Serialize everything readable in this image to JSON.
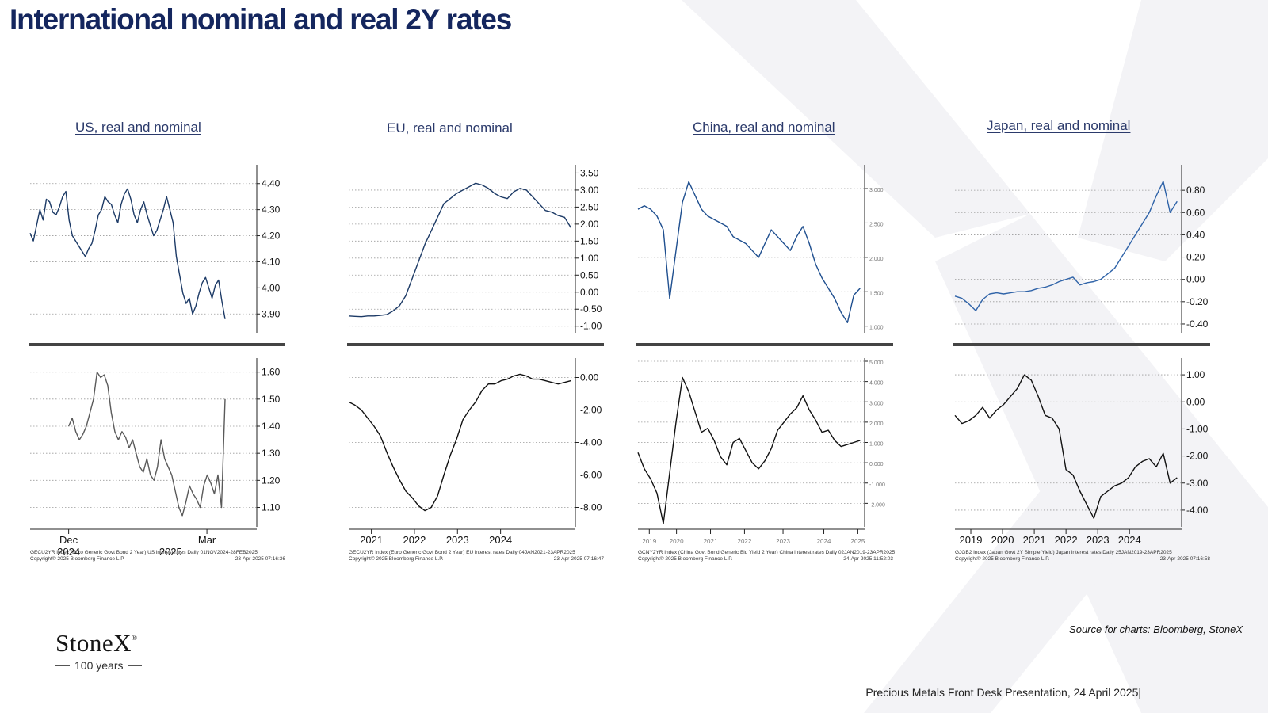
{
  "page": {
    "title": "International nominal and real 2Y rates",
    "source": "Source for charts: Bloomberg, StoneX",
    "footer": "Precious Metals Front Desk Presentation, 24 April 2025|",
    "logo": {
      "name": "StoneX",
      "mark": "®",
      "tagline": "100 years"
    }
  },
  "chart_data": [
    {
      "type": "line",
      "title": "US, real and nominal",
      "panels": [
        {
          "name": "nominal",
          "color": "#1c3a66",
          "ylim": [
            3.84,
            4.46
          ],
          "yticks": [
            3.9,
            4.0,
            4.1,
            4.2,
            4.3,
            4.4
          ],
          "decimals": 2,
          "t0": 0.0,
          "t1": 0.86,
          "values": [
            4.21,
            4.18,
            4.24,
            4.3,
            4.26,
            4.34,
            4.33,
            4.29,
            4.28,
            4.31,
            4.35,
            4.37,
            4.26,
            4.2,
            4.18,
            4.16,
            4.14,
            4.12,
            4.15,
            4.17,
            4.22,
            4.28,
            4.3,
            4.35,
            4.33,
            4.32,
            4.28,
            4.25,
            4.32,
            4.36,
            4.38,
            4.34,
            4.28,
            4.25,
            4.3,
            4.33,
            4.28,
            4.24,
            4.2,
            4.22,
            4.26,
            4.3,
            4.35,
            4.3,
            4.25,
            4.12,
            4.05,
            3.98,
            3.94,
            3.96,
            3.9,
            3.93,
            3.98,
            4.02,
            4.04,
            4.0,
            3.96,
            4.01,
            4.03,
            3.95,
            3.88
          ]
        },
        {
          "name": "real",
          "color": "#5a5a5a",
          "ylim": [
            1.04,
            1.64
          ],
          "yticks": [
            1.1,
            1.2,
            1.3,
            1.4,
            1.5,
            1.6
          ],
          "decimals": 2,
          "t0": 0.17,
          "t1": 0.86,
          "values": [
            1.4,
            1.43,
            1.38,
            1.35,
            1.37,
            1.4,
            1.45,
            1.5,
            1.6,
            1.58,
            1.59,
            1.55,
            1.45,
            1.38,
            1.35,
            1.38,
            1.36,
            1.32,
            1.35,
            1.3,
            1.25,
            1.23,
            1.28,
            1.22,
            1.2,
            1.25,
            1.35,
            1.28,
            1.25,
            1.22,
            1.16,
            1.1,
            1.07,
            1.12,
            1.18,
            1.15,
            1.13,
            1.1,
            1.18,
            1.22,
            1.19,
            1.15,
            1.22,
            1.1,
            1.5
          ]
        }
      ],
      "x_axis": {
        "ticks": [
          "Dec",
          "Mar"
        ],
        "tick_pos": [
          0.17,
          0.78
        ],
        "years": [
          "2024",
          "2025"
        ],
        "year_pos": [
          0.17,
          0.62
        ]
      },
      "caption": [
        "GECU2YR Index (Euro Generic Govt Bond 2 Year) US interest rates  Daily 01NOV2024-28FEB2025",
        "Copyright© 2025 Bloomberg Finance L.P.",
        "23-Apr-2025 07:16:36"
      ]
    },
    {
      "type": "line",
      "title": "EU, real and nominal",
      "panels": [
        {
          "name": "nominal",
          "color": "#1c3a66",
          "ylim": [
            -1.1,
            3.65
          ],
          "yticks": [
            -1.0,
            -0.5,
            0.0,
            0.5,
            1.0,
            1.5,
            2.0,
            2.5,
            3.0,
            3.5
          ],
          "decimals": 2,
          "t0": 0.0,
          "t1": 0.98,
          "values": [
            -0.7,
            -0.71,
            -0.72,
            -0.7,
            -0.7,
            -0.68,
            -0.66,
            -0.55,
            -0.4,
            -0.1,
            0.4,
            0.9,
            1.4,
            1.8,
            2.2,
            2.6,
            2.75,
            2.9,
            3.0,
            3.1,
            3.2,
            3.15,
            3.05,
            2.9,
            2.8,
            2.75,
            2.95,
            3.05,
            3.0,
            2.8,
            2.6,
            2.4,
            2.35,
            2.25,
            2.2,
            1.9
          ]
        },
        {
          "name": "real",
          "color": "#111111",
          "ylim": [
            -9.0,
            1.0
          ],
          "yticks": [
            -8.0,
            -6.0,
            -4.0,
            -2.0,
            0.0
          ],
          "decimals": 2,
          "t0": 0.0,
          "t1": 0.98,
          "values": [
            -1.5,
            -1.7,
            -2.0,
            -2.5,
            -3.0,
            -3.6,
            -4.6,
            -5.5,
            -6.3,
            -7.0,
            -7.4,
            -7.9,
            -8.2,
            -8.0,
            -7.3,
            -6.0,
            -4.8,
            -3.8,
            -2.6,
            -2.0,
            -1.5,
            -0.8,
            -0.4,
            -0.4,
            -0.2,
            -0.1,
            0.1,
            0.2,
            0.1,
            -0.1,
            -0.1,
            -0.2,
            -0.3,
            -0.4,
            -0.3,
            -0.2
          ]
        }
      ],
      "x_axis": {
        "ticks": [
          "2021",
          "2022",
          "2023",
          "2024"
        ],
        "tick_pos": [
          0.1,
          0.29,
          0.48,
          0.67
        ],
        "years": [],
        "year_pos": []
      },
      "caption": [
        "GECU2YR Index (Euro Generic Govt Bond 2 Year) EU interest rates  Daily 04JAN2021-23APR2025",
        "Copyright© 2025 Bloomberg Finance L.P.",
        "23-Apr-2025 07:16:47"
      ]
    },
    {
      "type": "line",
      "title": "China, real and nominal",
      "panels": [
        {
          "name": "nominal",
          "color": "#1f4f8f",
          "ylim": [
            0.95,
            3.3
          ],
          "yticks": [
            1.0,
            1.5,
            2.0,
            2.5,
            3.0
          ],
          "decimals": 3,
          "t0": 0.0,
          "t1": 0.98,
          "values": [
            2.7,
            2.75,
            2.7,
            2.6,
            2.4,
            1.4,
            2.1,
            2.8,
            3.1,
            2.9,
            2.7,
            2.6,
            2.55,
            2.5,
            2.45,
            2.3,
            2.25,
            2.2,
            2.1,
            2.0,
            2.2,
            2.4,
            2.3,
            2.2,
            2.1,
            2.3,
            2.45,
            2.2,
            1.9,
            1.7,
            1.55,
            1.4,
            1.2,
            1.05,
            1.45,
            1.55
          ]
        },
        {
          "name": "real",
          "color": "#111111",
          "ylim": [
            -3.0,
            5.0
          ],
          "yticks": [
            -2.0,
            -1.0,
            0.0,
            1.0,
            2.0,
            3.0,
            4.0,
            5.0
          ],
          "decimals": 3,
          "t0": 0.0,
          "t1": 0.98,
          "values": [
            0.5,
            -0.3,
            -0.8,
            -1.5,
            -3.0,
            -0.5,
            2.0,
            4.2,
            3.5,
            2.5,
            1.5,
            1.7,
            1.1,
            0.3,
            -0.1,
            1.0,
            1.2,
            0.6,
            0.0,
            -0.3,
            0.1,
            0.7,
            1.6,
            2.0,
            2.4,
            2.7,
            3.3,
            2.6,
            2.1,
            1.5,
            1.6,
            1.1,
            0.8,
            0.9,
            1.0,
            1.1
          ]
        }
      ],
      "x_axis": {
        "ticks": [
          "2019",
          "2020",
          "2021",
          "2022",
          "2023",
          "2024",
          "2025"
        ],
        "tick_pos": [
          0.05,
          0.17,
          0.32,
          0.47,
          0.64,
          0.82,
          0.97
        ],
        "years": [],
        "year_pos": []
      },
      "caption": [
        "GCNY2YR Index (China Govt Bond Generic Bid Yield 2 Year) China interest rates  Daily 02JAN2019-23APR2025",
        "Copyright© 2025 Bloomberg Finance L.P.",
        "24-Apr-2025 11:52:03"
      ]
    },
    {
      "type": "line",
      "title": "Japan, real and nominal",
      "panels": [
        {
          "name": "nominal",
          "color": "#2f63a8",
          "ylim": [
            -0.45,
            1.0
          ],
          "yticks": [
            -0.4,
            -0.2,
            0.0,
            0.2,
            0.4,
            0.6,
            0.8
          ],
          "decimals": 2,
          "t0": 0.0,
          "t1": 0.98,
          "values": [
            -0.15,
            -0.17,
            -0.22,
            -0.28,
            -0.18,
            -0.13,
            -0.12,
            -0.13,
            -0.12,
            -0.11,
            -0.11,
            -0.1,
            -0.08,
            -0.07,
            -0.05,
            -0.02,
            0.0,
            0.02,
            -0.05,
            -0.03,
            -0.02,
            0.0,
            0.05,
            0.1,
            0.2,
            0.3,
            0.4,
            0.5,
            0.6,
            0.75,
            0.88,
            0.6,
            0.7
          ]
        },
        {
          "name": "real",
          "color": "#111111",
          "ylim": [
            -4.5,
            1.5
          ],
          "yticks": [
            -4.0,
            -3.0,
            -2.0,
            -1.0,
            0.0,
            1.0
          ],
          "decimals": 2,
          "t0": 0.0,
          "t1": 0.98,
          "values": [
            -0.5,
            -0.8,
            -0.7,
            -0.5,
            -0.2,
            -0.6,
            -0.3,
            -0.1,
            0.2,
            0.5,
            1.0,
            0.8,
            0.2,
            -0.5,
            -0.6,
            -1.0,
            -2.5,
            -2.7,
            -3.3,
            -3.8,
            -4.3,
            -3.5,
            -3.3,
            -3.1,
            -3.0,
            -2.8,
            -2.4,
            -2.2,
            -2.1,
            -2.4,
            -1.9,
            -3.0,
            -2.8
          ]
        }
      ],
      "x_axis": {
        "ticks": [
          "2019",
          "2020",
          "2021",
          "2022",
          "2023",
          "2024"
        ],
        "tick_pos": [
          0.07,
          0.21,
          0.35,
          0.49,
          0.63,
          0.77
        ],
        "years": [],
        "year_pos": []
      },
      "caption": [
        "GJGB2 Index (Japan Govt 2Y Simple Yield) Japan interest rates  Daily 25JAN2019-23APR2025",
        "Copyright© 2025 Bloomberg Finance L.P.",
        "23-Apr-2025 07:16:58"
      ]
    }
  ]
}
